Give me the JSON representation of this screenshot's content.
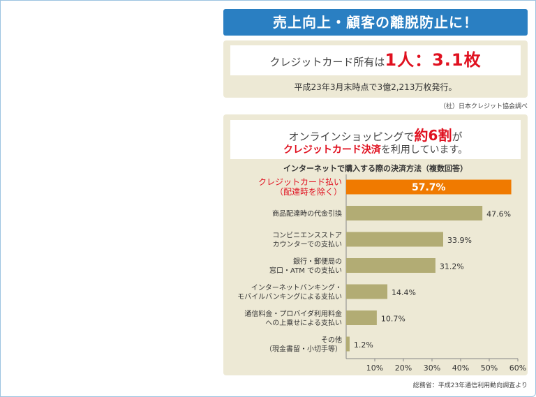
{
  "banner": "売上向上・顧客の離脱防止に！",
  "card_stat": {
    "prefix": "クレジットカード所有は",
    "value": "1人：3.1枚",
    "note": "平成23年3月末時点で3億2,213万枚発行。",
    "source": "（社）日本クレジット協会調べ"
  },
  "online": {
    "line1_pre": "オンラインショッピングで",
    "line1_em": "約6割",
    "line1_post": "が",
    "line2_em": "クレジットカード決済",
    "line2_post": "を利用しています。"
  },
  "chart_data": {
    "type": "bar",
    "orientation": "horizontal",
    "title": "インターネットで購入する際の決済方法（複数回答）",
    "categories": [
      [
        "クレジットカード払い",
        "（配達時を除く）"
      ],
      [
        "商品配達時の代金引換"
      ],
      [
        "コンビニエンスストア",
        "カウンターでの支払い"
      ],
      [
        "銀行・郵便局の",
        "窓口・ATM での支払い"
      ],
      [
        "インターネットバンキング・",
        "モバイルバンキングによる支払い"
      ],
      [
        "通信料金・プロバイダ利用料金",
        "への上乗せによる支払い"
      ],
      [
        "その他",
        "（現金書留・小切手等）"
      ]
    ],
    "values": [
      57.7,
      47.6,
      33.9,
      31.2,
      14.4,
      10.7,
      1.2
    ],
    "value_labels": [
      "57.7%",
      "47.6%",
      "33.9%",
      "31.2%",
      "14.4%",
      "10.7%",
      "1.2%"
    ],
    "xlim": [
      0,
      60
    ],
    "xticks": [
      "10%",
      "20%",
      "30%",
      "40%",
      "50%",
      "60%"
    ],
    "highlight_index": 0,
    "colors": {
      "highlight": "#f07a00",
      "highlight_text": "#e0101f",
      "bar": "#b2ac74",
      "label": "#333333"
    },
    "source": "総務省：平成23年通信利用動向調査より"
  }
}
